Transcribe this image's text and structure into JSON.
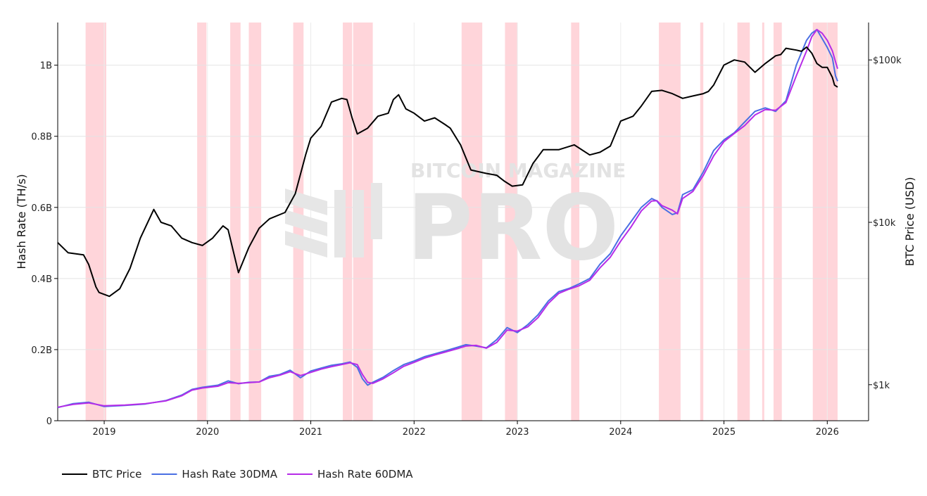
{
  "chart_data": {
    "type": "line",
    "x_axis": {
      "ticks": [
        "2019",
        "2020",
        "2021",
        "2022",
        "2023",
        "2024",
        "2025",
        "2026"
      ],
      "range": [
        2018.55,
        2026.4
      ]
    },
    "y_left": {
      "label": "Hash Rate (TH/s)",
      "ticks": [
        "0",
        "0.2B",
        "0.4B",
        "0.6B",
        "0.8B",
        "1B"
      ],
      "range": [
        0,
        1.12
      ]
    },
    "y_right": {
      "label": "BTC Price (USD)",
      "ticks": [
        "$1k",
        "$10k",
        "$100k"
      ],
      "scale": "log",
      "range": [
        600,
        170000
      ]
    },
    "grid": true,
    "legend_position": "bottom-left",
    "watermark": {
      "line1": "BITCOIN MAGAZINE",
      "line2": "PRO"
    },
    "shaded_regions": [
      [
        2018.82,
        2019.02
      ],
      [
        2019.9,
        2019.99
      ],
      [
        2020.22,
        2020.32
      ],
      [
        2020.4,
        2020.52
      ],
      [
        2020.83,
        2020.93
      ],
      [
        2021.31,
        2021.4
      ],
      [
        2021.41,
        2021.6
      ],
      [
        2022.46,
        2022.66
      ],
      [
        2022.88,
        2023.0
      ],
      [
        2023.52,
        2023.6
      ],
      [
        2024.37,
        2024.58
      ],
      [
        2024.77,
        2024.8
      ],
      [
        2025.13,
        2025.25
      ],
      [
        2025.37,
        2025.39
      ],
      [
        2025.48,
        2025.56
      ],
      [
        2025.86,
        2026.1
      ]
    ],
    "series": [
      {
        "name": "BTC Price",
        "color": "#000000",
        "axis": "right",
        "x": [
          2018.55,
          2018.65,
          2018.8,
          2018.85,
          2018.92,
          2018.95,
          2019.05,
          2019.15,
          2019.25,
          2019.35,
          2019.48,
          2019.55,
          2019.65,
          2019.75,
          2019.85,
          2019.95,
          2020.05,
          2020.15,
          2020.2,
          2020.3,
          2020.4,
          2020.5,
          2020.6,
          2020.75,
          2020.85,
          2020.95,
          2021.0,
          2021.1,
          2021.2,
          2021.3,
          2021.35,
          2021.4,
          2021.45,
          2021.55,
          2021.65,
          2021.75,
          2021.8,
          2021.85,
          2021.92,
          2022.0,
          2022.1,
          2022.2,
          2022.3,
          2022.35,
          2022.45,
          2022.55,
          2022.7,
          2022.8,
          2022.87,
          2022.95,
          2023.05,
          2023.15,
          2023.25,
          2023.4,
          2023.55,
          2023.7,
          2023.8,
          2023.9,
          2024.0,
          2024.12,
          2024.2,
          2024.3,
          2024.4,
          2024.5,
          2024.6,
          2024.7,
          2024.8,
          2024.85,
          2024.9,
          2025.0,
          2025.1,
          2025.2,
          2025.3,
          2025.4,
          2025.5,
          2025.55,
          2025.6,
          2025.7,
          2025.75,
          2025.8,
          2025.85,
          2025.9,
          2025.95,
          2026.0,
          2026.05,
          2026.07,
          2026.1
        ],
        "values": [
          7500,
          6500,
          6300,
          5500,
          4000,
          3700,
          3500,
          3900,
          5200,
          8000,
          12000,
          10000,
          9500,
          8000,
          7500,
          7200,
          8000,
          9500,
          9000,
          4900,
          7000,
          9200,
          10500,
          11500,
          15000,
          26000,
          33000,
          39000,
          55000,
          58000,
          57000,
          44000,
          35000,
          38000,
          45000,
          47000,
          57000,
          61000,
          50000,
          47000,
          42000,
          44000,
          40000,
          38000,
          30000,
          21000,
          20000,
          19500,
          18000,
          16700,
          17000,
          23000,
          28000,
          28000,
          30000,
          26000,
          27000,
          29500,
          42000,
          45000,
          52000,
          64000,
          65000,
          62000,
          58000,
          60000,
          62000,
          64000,
          70000,
          93000,
          100000,
          97000,
          84000,
          95000,
          106000,
          108000,
          118000,
          115000,
          113000,
          120000,
          110000,
          95000,
          90000,
          90000,
          78000,
          70000,
          68000
        ]
      },
      {
        "name": "Hash Rate 30DMA",
        "color": "#4a6fe3",
        "axis": "left",
        "x": [
          2018.55,
          2018.7,
          2018.85,
          2019.0,
          2019.2,
          2019.4,
          2019.6,
          2019.75,
          2019.85,
          2019.95,
          2020.1,
          2020.2,
          2020.3,
          2020.4,
          2020.5,
          2020.6,
          2020.7,
          2020.8,
          2020.9,
          2021.0,
          2021.1,
          2021.2,
          2021.3,
          2021.38,
          2021.45,
          2021.5,
          2021.55,
          2021.6,
          2021.7,
          2021.8,
          2021.9,
          2022.0,
          2022.1,
          2022.2,
          2022.3,
          2022.4,
          2022.5,
          2022.6,
          2022.7,
          2022.8,
          2022.9,
          2023.0,
          2023.1,
          2023.2,
          2023.3,
          2023.4,
          2023.5,
          2023.6,
          2023.7,
          2023.8,
          2023.9,
          2024.0,
          2024.1,
          2024.2,
          2024.3,
          2024.35,
          2024.4,
          2024.5,
          2024.55,
          2024.6,
          2024.7,
          2024.8,
          2024.9,
          2025.0,
          2025.1,
          2025.2,
          2025.3,
          2025.4,
          2025.5,
          2025.6,
          2025.7,
          2025.8,
          2025.85,
          2025.9,
          2025.95,
          2026.0,
          2026.05,
          2026.08,
          2026.1
        ],
        "values": [
          0.037,
          0.048,
          0.052,
          0.04,
          0.043,
          0.047,
          0.057,
          0.072,
          0.088,
          0.094,
          0.1,
          0.112,
          0.104,
          0.108,
          0.109,
          0.125,
          0.13,
          0.142,
          0.121,
          0.14,
          0.148,
          0.156,
          0.16,
          0.165,
          0.15,
          0.118,
          0.1,
          0.108,
          0.122,
          0.141,
          0.158,
          0.168,
          0.18,
          0.188,
          0.196,
          0.205,
          0.214,
          0.21,
          0.205,
          0.228,
          0.262,
          0.248,
          0.27,
          0.298,
          0.337,
          0.363,
          0.372,
          0.385,
          0.4,
          0.44,
          0.47,
          0.52,
          0.56,
          0.6,
          0.625,
          0.618,
          0.6,
          0.58,
          0.585,
          0.636,
          0.65,
          0.7,
          0.76,
          0.79,
          0.81,
          0.84,
          0.87,
          0.88,
          0.87,
          0.9,
          1.0,
          1.07,
          1.09,
          1.1,
          1.075,
          1.05,
          1.02,
          0.97,
          0.955
        ]
      },
      {
        "name": "Hash Rate 60DMA",
        "color": "#b62ce8",
        "axis": "left",
        "x": [
          2018.55,
          2018.7,
          2018.85,
          2019.0,
          2019.2,
          2019.4,
          2019.6,
          2019.75,
          2019.85,
          2019.95,
          2020.1,
          2020.2,
          2020.3,
          2020.4,
          2020.5,
          2020.6,
          2020.7,
          2020.8,
          2020.9,
          2021.0,
          2021.1,
          2021.2,
          2021.3,
          2021.38,
          2021.45,
          2021.5,
          2021.55,
          2021.6,
          2021.7,
          2021.8,
          2021.9,
          2022.0,
          2022.1,
          2022.2,
          2022.3,
          2022.4,
          2022.5,
          2022.6,
          2022.7,
          2022.8,
          2022.9,
          2023.0,
          2023.1,
          2023.2,
          2023.3,
          2023.4,
          2023.5,
          2023.6,
          2023.7,
          2023.8,
          2023.9,
          2024.0,
          2024.1,
          2024.2,
          2024.3,
          2024.35,
          2024.4,
          2024.5,
          2024.55,
          2024.6,
          2024.7,
          2024.8,
          2024.9,
          2025.0,
          2025.1,
          2025.2,
          2025.3,
          2025.4,
          2025.5,
          2025.6,
          2025.7,
          2025.8,
          2025.85,
          2025.9,
          2025.95,
          2026.0,
          2026.05,
          2026.08,
          2026.1
        ],
        "values": [
          0.038,
          0.046,
          0.05,
          0.042,
          0.044,
          0.048,
          0.056,
          0.07,
          0.086,
          0.092,
          0.097,
          0.107,
          0.105,
          0.107,
          0.109,
          0.121,
          0.128,
          0.138,
          0.127,
          0.136,
          0.145,
          0.152,
          0.158,
          0.163,
          0.158,
          0.13,
          0.108,
          0.105,
          0.118,
          0.135,
          0.153,
          0.164,
          0.176,
          0.185,
          0.193,
          0.201,
          0.21,
          0.212,
          0.204,
          0.22,
          0.255,
          0.252,
          0.264,
          0.29,
          0.33,
          0.358,
          0.37,
          0.38,
          0.395,
          0.43,
          0.46,
          0.505,
          0.545,
          0.59,
          0.618,
          0.619,
          0.605,
          0.592,
          0.582,
          0.625,
          0.645,
          0.69,
          0.745,
          0.785,
          0.808,
          0.83,
          0.86,
          0.875,
          0.873,
          0.895,
          0.97,
          1.04,
          1.08,
          1.1,
          1.09,
          1.07,
          1.04,
          1.01,
          0.99
        ]
      }
    ]
  }
}
